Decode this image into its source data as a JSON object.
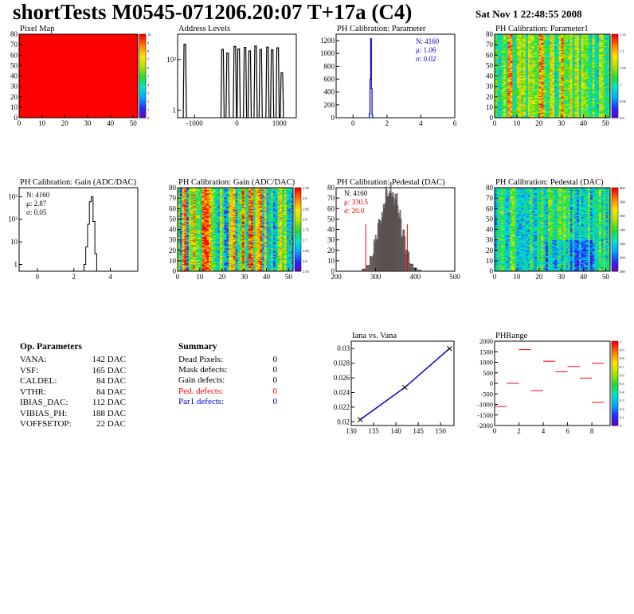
{
  "header": {
    "title": "shortTests M0545-071206.20:07 T+17a (C4)",
    "date": "Sat Nov  1 22:48:55 2008"
  },
  "chart_data": [
    {
      "id": "pixel-map",
      "type": "heatmap",
      "title": "Pixel Map",
      "xlim": [
        0,
        52
      ],
      "ylim": [
        0,
        80
      ],
      "xticks": [
        "0",
        "10",
        "20",
        "30",
        "40",
        "50"
      ],
      "yticks": [
        "0",
        "10",
        "20",
        "30",
        "40",
        "50",
        "60",
        "70",
        "80"
      ],
      "zticks": [
        "10",
        "9",
        "8",
        "7",
        "6",
        "5",
        "4",
        "3",
        "2",
        "1",
        "0"
      ],
      "fill": "uniform",
      "fill_value": 10,
      "color": "#ff0000"
    },
    {
      "id": "address-levels",
      "type": "bar",
      "title": "Address Levels",
      "yscale": "log",
      "xlim": [
        -1400,
        1400
      ],
      "xticks": [
        "-1000",
        "0",
        "1000"
      ],
      "yticks": [
        "1",
        "10²"
      ],
      "peaks_x": [
        -1230,
        -340,
        -220,
        -50,
        40,
        190,
        300,
        440,
        560,
        720,
        830,
        960,
        1060
      ],
      "peaks_y": [
        400,
        250,
        180,
        330,
        260,
        300,
        220,
        340,
        250,
        310,
        240,
        290,
        30
      ]
    },
    {
      "id": "ph-calib-param",
      "type": "bar",
      "title": "PH Calibration: Parameter",
      "xlim": [
        -1,
        6
      ],
      "ylim": [
        0,
        1300
      ],
      "xticks": [
        "0",
        "2",
        "4",
        "6"
      ],
      "yticks": [
        "0",
        "200",
        "400",
        "600",
        "800",
        "1000",
        "1200"
      ],
      "x": [
        0.98,
        1.02,
        1.06,
        1.1,
        1.14
      ],
      "y": [
        60,
        600,
        1230,
        450,
        40
      ],
      "stats": {
        "n": "N: 4160",
        "mean": "μ: 1.06",
        "sigma": "σ: 0.02"
      }
    },
    {
      "id": "ph-calib-param1",
      "type": "heatmap",
      "title": "PH Calibration: Parameter1",
      "xlim": [
        0,
        52
      ],
      "ylim": [
        0,
        80
      ],
      "xticks": [
        "0",
        "10",
        "20",
        "30",
        "40",
        "50"
      ],
      "yticks": [
        "0",
        "10",
        "20",
        "30",
        "40",
        "50",
        "60",
        "70",
        "80"
      ],
      "zticks": [
        "1.15",
        "1.1",
        "1.05",
        "1",
        "0.95",
        "0.9"
      ],
      "fill": "column-structured"
    },
    {
      "id": "ph-gain-hist",
      "type": "bar",
      "title": "PH Calibration: Gain (ADC/DAC)",
      "yscale": "log",
      "xlim": [
        -1,
        5.5
      ],
      "xticks": [
        "0",
        "2",
        "4"
      ],
      "yticks": [
        "1",
        "10",
        "10²",
        "10³"
      ],
      "x": [
        2.6,
        2.7,
        2.8,
        2.9,
        3.0,
        3.1,
        3.2
      ],
      "y": [
        1,
        6,
        60,
        600,
        1000,
        80,
        3
      ],
      "stats": {
        "n": "N: 4160",
        "mean": "μ: 2.87",
        "sigma": "σ: 0.05"
      }
    },
    {
      "id": "ph-gain-map",
      "type": "heatmap",
      "title": "PH Calibration: Gain (ADC/DAC)",
      "xlim": [
        0,
        52
      ],
      "ylim": [
        0,
        80
      ],
      "xticks": [
        "0",
        "10",
        "20",
        "30",
        "40",
        "50"
      ],
      "yticks": [
        "0",
        "10",
        "20",
        "30",
        "40",
        "50",
        "60",
        "70",
        "80"
      ],
      "zticks": [
        "2.95",
        "2.9",
        "2.85",
        "2.8",
        "2.75",
        "2.7",
        "2.65",
        "2.6",
        "2.55"
      ],
      "fill": "column-structured"
    },
    {
      "id": "ph-pedestal-hist",
      "type": "bar",
      "title": "PH Calibration: Pedestal (DAC)",
      "xlim": [
        200,
        500
      ],
      "ylim": [
        0,
        80
      ],
      "xticks": [
        "200",
        "300",
        "400",
        "500"
      ],
      "yticks": [
        "0",
        "10",
        "20",
        "30",
        "40",
        "50",
        "60",
        "70",
        "80"
      ],
      "x": [
        270,
        280,
        290,
        300,
        310,
        320,
        330,
        340,
        350,
        360,
        370,
        380,
        390,
        400,
        410
      ],
      "y": [
        2,
        6,
        15,
        30,
        45,
        60,
        72,
        77,
        70,
        55,
        35,
        18,
        7,
        3,
        1
      ],
      "cut_lines_x": [
        275,
        380
      ],
      "stats": {
        "n": "N: 4160",
        "mean": "μ: 330.5",
        "sigma": "σ: 20.0"
      }
    },
    {
      "id": "ph-pedestal-map",
      "type": "heatmap",
      "title": "PH Calibration: Pedestal (DAC)",
      "xlim": [
        0,
        52
      ],
      "ylim": [
        0,
        80
      ],
      "xticks": [
        "0",
        "10",
        "20",
        "30",
        "40",
        "50"
      ],
      "yticks": [
        "0",
        "10",
        "20",
        "30",
        "40",
        "50",
        "60",
        "70",
        "80"
      ],
      "zticks": [
        "400",
        "380",
        "360",
        "340",
        "320",
        "300",
        "280"
      ],
      "fill": "column-structured"
    },
    {
      "id": "iana-vana",
      "type": "line",
      "title": "Iana vs. Vana",
      "xlim": [
        130,
        153
      ],
      "ylim": [
        0.0195,
        0.031
      ],
      "xticks": [
        "130",
        "135",
        "140",
        "145",
        "150"
      ],
      "yticks": [
        "0.02",
        "0.022",
        "0.024",
        "0.026",
        "0.028",
        "0.03"
      ],
      "x": [
        132,
        142,
        152
      ],
      "y": [
        0.0203,
        0.0247,
        0.03
      ]
    },
    {
      "id": "phrange",
      "type": "scatter",
      "title": "PHRange",
      "xlim": [
        0,
        9.5
      ],
      "ylim": [
        -2000,
        2000
      ],
      "xticks": [
        "0",
        "2",
        "4",
        "6",
        "8"
      ],
      "yticks": [
        "2000",
        "1500",
        "1000",
        "500",
        "0",
        "-500",
        "-1000",
        "-1500",
        "-2000"
      ],
      "zticks": [
        "1",
        "0.9",
        "0.8",
        "0.7",
        "0.6",
        "0.5",
        "0.4",
        "0.3",
        "0.2",
        "0.1",
        "0"
      ],
      "x": [
        0.5,
        1.5,
        2.5,
        3.5,
        4.5,
        5.5,
        6.5,
        7.5,
        8.5,
        8.5
      ],
      "y": [
        -1100,
        0,
        1600,
        -350,
        1050,
        550,
        800,
        250,
        950,
        -900
      ]
    }
  ],
  "op_params": {
    "heading": "Op. Parameters",
    "rows": [
      {
        "name": "VANA:",
        "value": "142 DAC"
      },
      {
        "name": "VSF:",
        "value": "165 DAC"
      },
      {
        "name": "CALDEL:",
        "value": "84 DAC"
      },
      {
        "name": "VTHR:",
        "value": "84 DAC"
      },
      {
        "name": "IBIAS_DAC:",
        "value": "112 DAC"
      },
      {
        "name": "VIBIAS_PH:",
        "value": "188 DAC"
      },
      {
        "name": "VOFFSETOP:",
        "value": "22 DAC"
      }
    ]
  },
  "summary": {
    "heading": "Summary",
    "rows": [
      {
        "name": "Dead Pixels:",
        "value": "0",
        "color": "#000000"
      },
      {
        "name": "Mask defects:",
        "value": "0",
        "color": "#000000"
      },
      {
        "name": "Gain defects:",
        "value": "0",
        "color": "#000000"
      },
      {
        "name": "Ped. defects:",
        "value": "0",
        "color": "#ff0000"
      },
      {
        "name": "Par1 defects:",
        "value": "0",
        "color": "#0000cc"
      }
    ]
  },
  "colors": {
    "stats_blue": "#0000cc",
    "stats_red": "#cc0000",
    "hist_line": "#000000",
    "param_line": "#0000cc"
  }
}
